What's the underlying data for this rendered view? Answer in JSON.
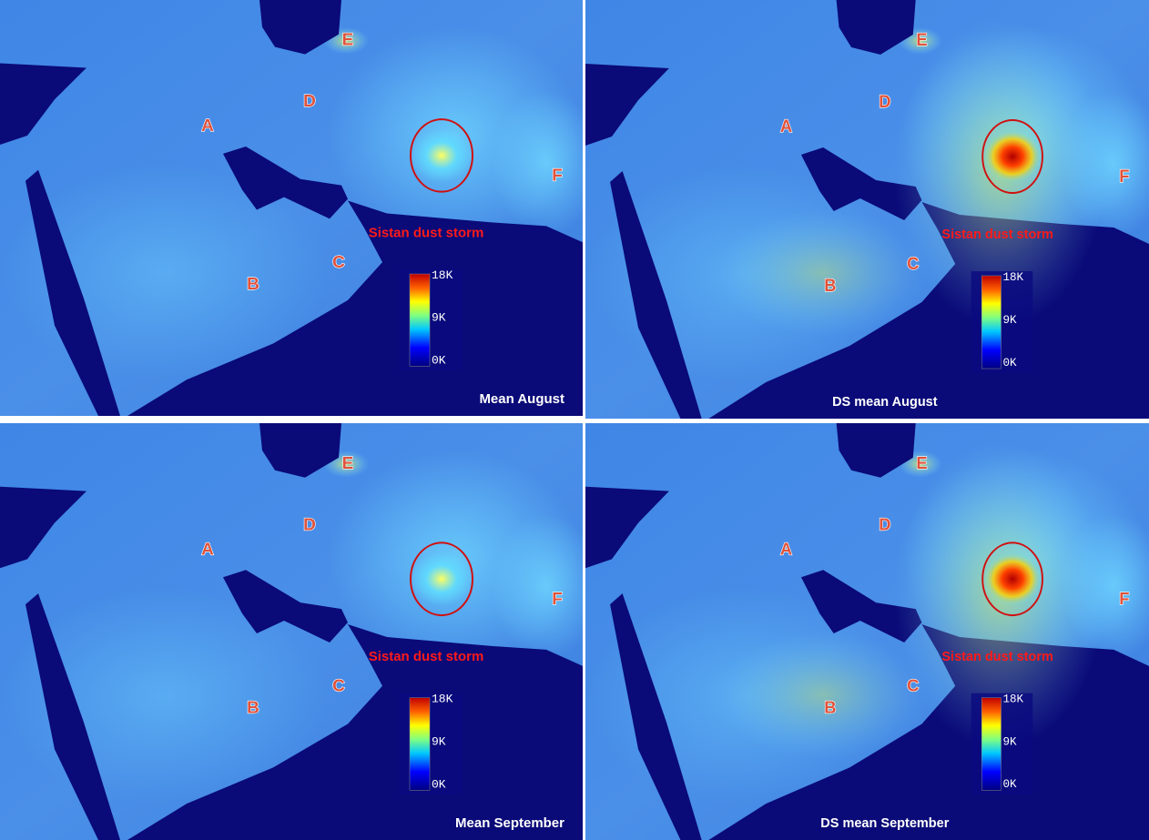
{
  "panels": [
    {
      "title": "Mean August",
      "labels": [
        "A",
        "B",
        "C",
        "D",
        "E",
        "F"
      ],
      "annotation": "Sistan dust storm",
      "colorbar": [
        "18K",
        "9K",
        "0K"
      ]
    },
    {
      "title": "DS mean August",
      "labels": [
        "A",
        "B",
        "C",
        "D",
        "E",
        "F"
      ],
      "annotation": "Sistan dust storm",
      "colorbar": [
        "18K",
        "9K",
        "0K"
      ]
    },
    {
      "title": "Mean September",
      "labels": [
        "A",
        "B",
        "C",
        "D",
        "E",
        "F"
      ],
      "annotation": "Sistan dust storm",
      "colorbar": [
        "18K",
        "9K",
        "0K"
      ]
    },
    {
      "title": "DS mean September",
      "labels": [
        "A",
        "B",
        "C",
        "D",
        "E",
        "F"
      ],
      "annotation": "Sistan dust storm",
      "colorbar": [
        "18K",
        "9K",
        "0K"
      ]
    }
  ]
}
